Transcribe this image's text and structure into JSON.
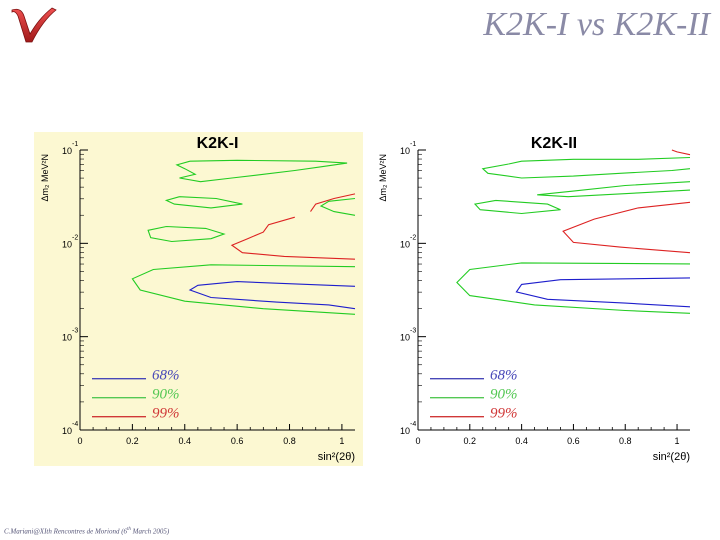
{
  "slide": {
    "title": "K2K-I vs K2K-II",
    "logo_letter": "V",
    "footer_main": "C.Mariani@XIth Rencontres de Moriond (6",
    "footer_sup": "th",
    "footer_tail": " March 2005)"
  },
  "colors": {
    "panel1_bg": "#fcf8d2",
    "panel2_bg": "#ffffff",
    "contour_68": "#1e1ecc",
    "contour_90": "#22cc22",
    "contour_99": "#dd2222",
    "legend_68": "#4848b8",
    "legend_90": "#54c854",
    "legend_99": "#d03838",
    "title_color": "#8a8aa6"
  },
  "chart_data": [
    {
      "type": "contour",
      "title": "K2K-I",
      "xlabel": "sin²(2θ)",
      "ylabel": "Δm₂ MeV²N",
      "xlim": [
        0,
        1.05
      ],
      "ylim_log10": [
        -4,
        -1
      ],
      "x_ticks": [
        "0",
        "0.2",
        "0.4",
        "0.6",
        "0.8",
        "1"
      ],
      "y_ticks": [
        {
          "base": "10",
          "exp": "-1"
        },
        {
          "base": "10",
          "exp": "-2"
        },
        {
          "base": "10",
          "exp": "-3"
        },
        {
          "base": "10",
          "exp": "-4"
        }
      ],
      "legend": [
        {
          "label": "68%",
          "level": "68"
        },
        {
          "label": "90%",
          "level": "90"
        },
        {
          "label": "99%",
          "level": "99"
        }
      ],
      "series": [
        {
          "level": "68",
          "points": [
            [
              1.05,
              -2.46
            ],
            [
              0.6,
              -2.41
            ],
            [
              0.45,
              -2.45
            ],
            [
              0.42,
              -2.5
            ],
            [
              0.5,
              -2.58
            ],
            [
              0.75,
              -2.63
            ],
            [
              0.95,
              -2.66
            ],
            [
              1.05,
              -2.7
            ]
          ]
        },
        {
          "level": "90",
          "points": [
            [
              1.05,
              -2.25
            ],
            [
              0.5,
              -2.23
            ],
            [
              0.28,
              -2.28
            ],
            [
              0.2,
              -2.38
            ],
            [
              0.23,
              -2.5
            ],
            [
              0.4,
              -2.62
            ],
            [
              0.7,
              -2.7
            ],
            [
              1.05,
              -2.76
            ]
          ]
        },
        {
          "level": "90",
          "points": [
            [
              0.33,
              -1.82
            ],
            [
              0.26,
              -1.86
            ],
            [
              0.27,
              -1.94
            ],
            [
              0.35,
              -1.98
            ],
            [
              0.5,
              -1.95
            ],
            [
              0.55,
              -1.9
            ],
            [
              0.48,
              -1.84
            ],
            [
              0.33,
              -1.82
            ]
          ]
        },
        {
          "level": "90",
          "points": [
            [
              0.38,
              -1.5
            ],
            [
              0.33,
              -1.54
            ],
            [
              0.36,
              -1.58
            ],
            [
              0.5,
              -1.62
            ],
            [
              0.62,
              -1.58
            ],
            [
              0.52,
              -1.52
            ],
            [
              0.38,
              -1.5
            ]
          ]
        },
        {
          "level": "90",
          "points": [
            [
              0.42,
              -1.12
            ],
            [
              0.37,
              -1.16
            ],
            [
              0.4,
              -1.2
            ],
            [
              0.44,
              -1.26
            ],
            [
              0.38,
              -1.3
            ],
            [
              0.46,
              -1.34
            ],
            [
              0.58,
              -1.3
            ],
            [
              0.7,
              -1.26
            ],
            [
              0.82,
              -1.22
            ],
            [
              0.92,
              -1.18
            ],
            [
              1.02,
              -1.14
            ],
            [
              0.9,
              -1.12
            ],
            [
              0.6,
              -1.11
            ],
            [
              0.42,
              -1.12
            ]
          ]
        },
        {
          "level": "90",
          "points": [
            [
              1.05,
              -1.52
            ],
            [
              0.95,
              -1.55
            ],
            [
              0.92,
              -1.6
            ],
            [
              0.97,
              -1.66
            ],
            [
              1.05,
              -1.7
            ]
          ]
        },
        {
          "level": "99",
          "points": [
            [
              1.05,
              -1.47
            ],
            [
              0.97,
              -1.52
            ],
            [
              0.9,
              -1.58
            ],
            [
              0.88,
              -1.66
            ]
          ]
        },
        {
          "level": "99",
          "points": [
            [
              0.82,
              -1.72
            ],
            [
              0.72,
              -1.8
            ],
            [
              0.7,
              -1.88
            ],
            [
              0.64,
              -1.95
            ],
            [
              0.58,
              -2.02
            ],
            [
              0.62,
              -2.1
            ],
            [
              0.78,
              -2.14
            ],
            [
              1.05,
              -2.17
            ]
          ]
        }
      ]
    },
    {
      "type": "contour",
      "title": "K2K-II",
      "xlabel": "sin²(2θ)",
      "ylabel": "Δm₂ MeV²N",
      "xlim": [
        0,
        1.05
      ],
      "ylim_log10": [
        -4,
        -1
      ],
      "x_ticks": [
        "0",
        "0.2",
        "0.4",
        "0.6",
        "0.8",
        "1"
      ],
      "y_ticks": [
        {
          "base": "10",
          "exp": "-1"
        },
        {
          "base": "10",
          "exp": "-2"
        },
        {
          "base": "10",
          "exp": "-3"
        },
        {
          "base": "10",
          "exp": "-4"
        }
      ],
      "legend": [
        {
          "label": "68%",
          "level": "68"
        },
        {
          "label": "90%",
          "level": "90"
        },
        {
          "label": "99%",
          "level": "99"
        }
      ],
      "series": [
        {
          "level": "68",
          "points": [
            [
              1.05,
              -2.37
            ],
            [
              0.55,
              -2.39
            ],
            [
              0.4,
              -2.44
            ],
            [
              0.38,
              -2.52
            ],
            [
              0.5,
              -2.6
            ],
            [
              0.8,
              -2.64
            ],
            [
              1.05,
              -2.68
            ]
          ]
        },
        {
          "level": "90",
          "points": [
            [
              1.05,
              -2.22
            ],
            [
              0.4,
              -2.21
            ],
            [
              0.2,
              -2.28
            ],
            [
              0.15,
              -2.42
            ],
            [
              0.2,
              -2.56
            ],
            [
              0.45,
              -2.66
            ],
            [
              0.8,
              -2.72
            ],
            [
              1.05,
              -2.75
            ]
          ]
        },
        {
          "level": "90",
          "points": [
            [
              0.3,
              -1.54
            ],
            [
              0.22,
              -1.58
            ],
            [
              0.24,
              -1.64
            ],
            [
              0.4,
              -1.68
            ],
            [
              0.55,
              -1.64
            ],
            [
              0.5,
              -1.58
            ],
            [
              0.3,
              -1.54
            ]
          ]
        },
        {
          "level": "90",
          "points": [
            [
              0.35,
              -1.15
            ],
            [
              0.25,
              -1.2
            ],
            [
              0.27,
              -1.25
            ],
            [
              0.4,
              -1.3
            ],
            [
              0.6,
              -1.28
            ],
            [
              0.78,
              -1.25
            ],
            [
              0.98,
              -1.22
            ],
            [
              1.05,
              -1.2
            ]
          ]
        },
        {
          "level": "90",
          "points": [
            [
              1.05,
              -1.08
            ],
            [
              0.85,
              -1.1
            ],
            [
              0.6,
              -1.1
            ],
            [
              0.4,
              -1.12
            ],
            [
              0.35,
              -1.15
            ]
          ]
        },
        {
          "level": "90",
          "points": [
            [
              1.05,
              -1.34
            ],
            [
              0.8,
              -1.38
            ],
            [
              0.6,
              -1.44
            ],
            [
              0.46,
              -1.48
            ],
            [
              0.58,
              -1.5
            ],
            [
              0.85,
              -1.46
            ],
            [
              1.05,
              -1.43
            ]
          ]
        },
        {
          "level": "99",
          "points": [
            [
              1.05,
              -1.05
            ],
            [
              1.0,
              -1.02
            ],
            [
              0.98,
              -1.0
            ]
          ]
        },
        {
          "level": "99",
          "points": [
            [
              1.05,
              -1.56
            ],
            [
              0.85,
              -1.62
            ],
            [
              0.68,
              -1.74
            ],
            [
              0.56,
              -1.87
            ],
            [
              0.6,
              -1.99
            ],
            [
              0.78,
              -2.04
            ],
            [
              1.05,
              -2.1
            ]
          ]
        }
      ]
    }
  ]
}
